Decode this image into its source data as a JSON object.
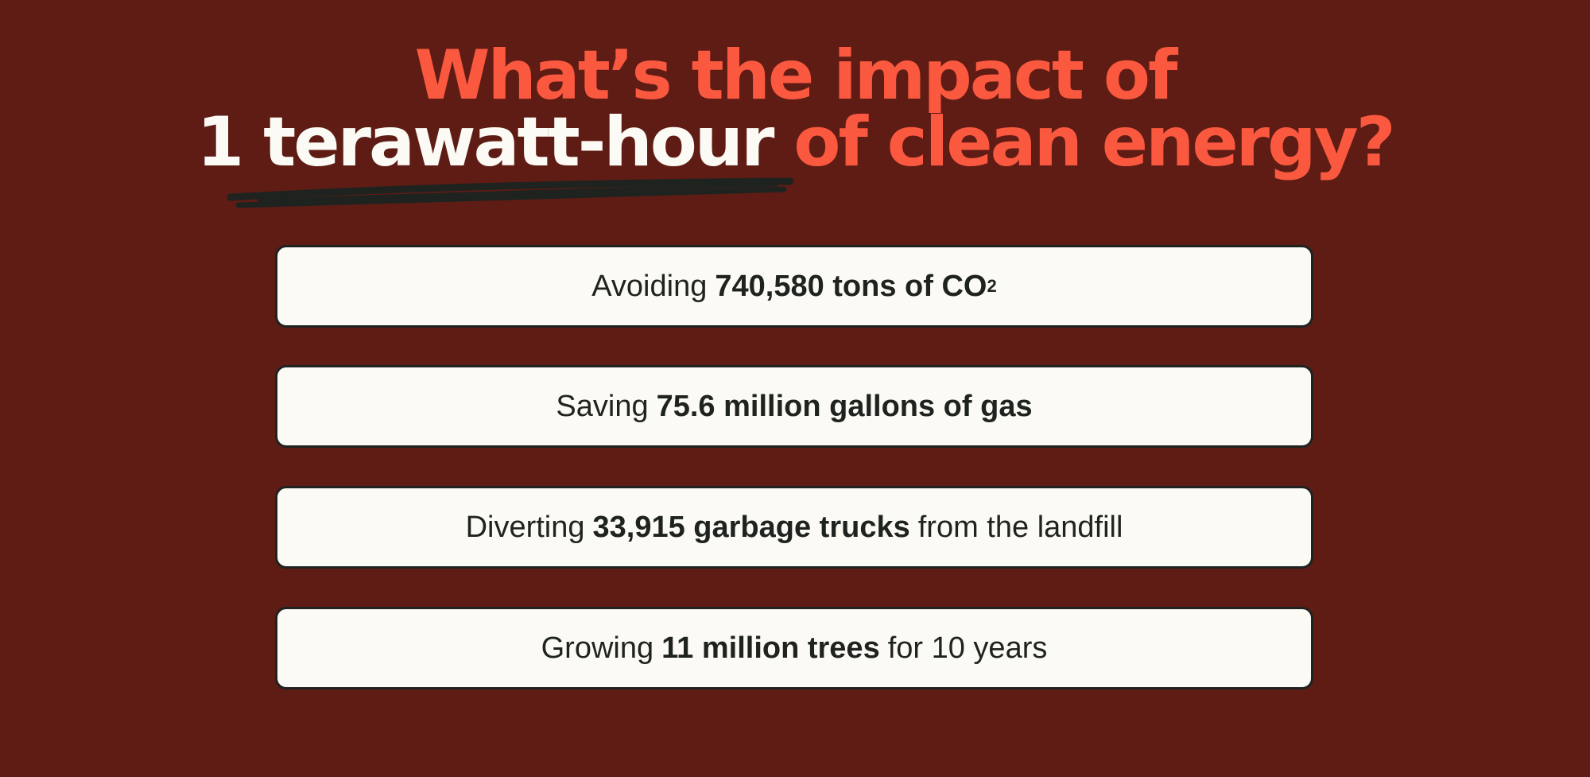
{
  "headline": {
    "line1": "What’s the impact of",
    "line2_highlight": "1 terawatt-hour",
    "line2_rest": " of clean energy?"
  },
  "facts": [
    {
      "prefix": "Avoiding",
      "bold": "740,580 tons of CO",
      "subscript": "2",
      "suffix": ""
    },
    {
      "prefix": "Saving",
      "bold": "75.6 million gallons of gas",
      "subscript": "",
      "suffix": ""
    },
    {
      "prefix": "Diverting",
      "bold": "33,915 garbage trucks",
      "subscript": "",
      "suffix": "from the landfill"
    },
    {
      "prefix": "Growing",
      "bold": "11 million trees",
      "subscript": "",
      "suffix": "for 10 years"
    }
  ],
  "colors": {
    "background": "#5f1c15",
    "accent_orange": "#fb593f",
    "card_background": "#fbfaf5",
    "text_dark": "#1f231f"
  }
}
